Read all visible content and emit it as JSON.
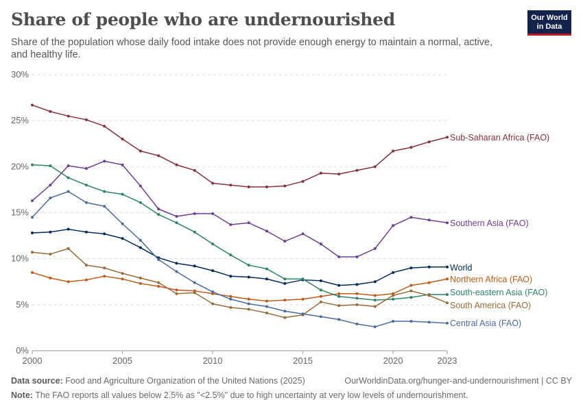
{
  "header": {
    "title": "Share of people who are undernourished",
    "subtitle": "Share of the population whose daily food intake does not provide enough energy to maintain a normal, active, and healthy life.",
    "logo_line1": "Our World",
    "logo_line2": "in Data"
  },
  "footer": {
    "source_label": "Data source:",
    "source_text": "Food and Agriculture Organization of the United Nations (2025)",
    "url_text": "OurWorldinData.org/hunger-and-undernourishment | CC BY",
    "note_label": "Note:",
    "note_text": "The FAO reports all values below 2.5% as \"<2.5%\" due to high uncertainty at very low levels of undernourishment."
  },
  "chart_data": {
    "type": "line",
    "x": [
      2000,
      2001,
      2002,
      2003,
      2004,
      2005,
      2006,
      2007,
      2008,
      2009,
      2010,
      2011,
      2012,
      2013,
      2014,
      2015,
      2016,
      2017,
      2018,
      2019,
      2020,
      2021,
      2022,
      2023
    ],
    "xticks": [
      "2000",
      "2005",
      "2010",
      "2015",
      "2020",
      "2023"
    ],
    "xtick_values": [
      2000,
      2005,
      2010,
      2015,
      2020,
      2023
    ],
    "yticks": [
      "0%",
      "5%",
      "10%",
      "15%",
      "20%",
      "25%",
      "30%"
    ],
    "ytick_values": [
      0,
      5,
      10,
      15,
      20,
      25,
      30
    ],
    "ylim": [
      0,
      30
    ],
    "xlim": [
      2000,
      2023
    ],
    "grid": "horizontal dashed",
    "series": [
      {
        "name": "Sub-Saharan Africa (FAO)",
        "color": "#883039",
        "values": [
          26.7,
          26.0,
          25.5,
          25.1,
          24.4,
          23.0,
          21.7,
          21.2,
          20.2,
          19.6,
          18.2,
          18.0,
          17.8,
          17.8,
          17.9,
          18.4,
          19.3,
          19.2,
          19.6,
          20.0,
          21.7,
          22.1,
          22.7,
          23.2
        ]
      },
      {
        "name": "Southern Asia (FAO)",
        "color": "#6d3e91",
        "values": [
          16.3,
          18.0,
          20.1,
          19.8,
          20.6,
          20.2,
          17.9,
          15.4,
          14.6,
          14.9,
          14.9,
          13.7,
          13.9,
          13.0,
          11.9,
          12.7,
          11.6,
          10.2,
          10.2,
          11.1,
          13.6,
          14.5,
          14.2,
          13.9
        ]
      },
      {
        "name": "World",
        "color": "#00295b",
        "values": [
          12.8,
          12.9,
          13.2,
          12.9,
          12.7,
          12.2,
          11.2,
          10.1,
          9.5,
          9.2,
          8.7,
          8.1,
          8.0,
          7.8,
          7.3,
          7.7,
          7.6,
          7.1,
          7.2,
          7.5,
          8.5,
          9.0,
          9.1,
          9.1
        ]
      },
      {
        "name": "Northern Africa (FAO)",
        "color": "#c05917",
        "values": [
          8.5,
          7.9,
          7.5,
          7.7,
          8.1,
          7.8,
          7.3,
          7.0,
          6.6,
          6.5,
          6.2,
          5.9,
          5.6,
          5.4,
          5.5,
          5.6,
          5.9,
          6.2,
          6.2,
          6.0,
          6.2,
          7.1,
          7.4,
          7.8
        ]
      },
      {
        "name": "South-eastern Asia (FAO)",
        "color": "#2c8465",
        "values": [
          20.2,
          20.1,
          18.8,
          18.0,
          17.3,
          17.0,
          16.1,
          14.8,
          13.9,
          12.9,
          11.6,
          10.4,
          9.3,
          8.9,
          7.8,
          7.8,
          6.6,
          5.9,
          5.7,
          5.5,
          5.6,
          5.8,
          6.1,
          6.1
        ]
      },
      {
        "name": "South America (FAO)",
        "color": "#9a6a36",
        "values": [
          10.7,
          10.5,
          11.1,
          9.3,
          9.0,
          8.4,
          7.9,
          7.4,
          6.2,
          6.3,
          5.1,
          4.7,
          4.5,
          4.1,
          3.6,
          3.9,
          5.3,
          4.9,
          5.0,
          4.8,
          6.0,
          6.5,
          6.0,
          5.2
        ]
      },
      {
        "name": "Central Asia (FAO)",
        "color": "#4c6a9c",
        "values": [
          14.5,
          16.6,
          17.3,
          16.1,
          15.7,
          13.8,
          12.0,
          9.9,
          8.6,
          7.4,
          6.4,
          5.6,
          5.1,
          4.8,
          4.3,
          4.0,
          3.7,
          3.4,
          2.9,
          2.6,
          3.2,
          3.2,
          3.1,
          3.0
        ]
      }
    ]
  }
}
